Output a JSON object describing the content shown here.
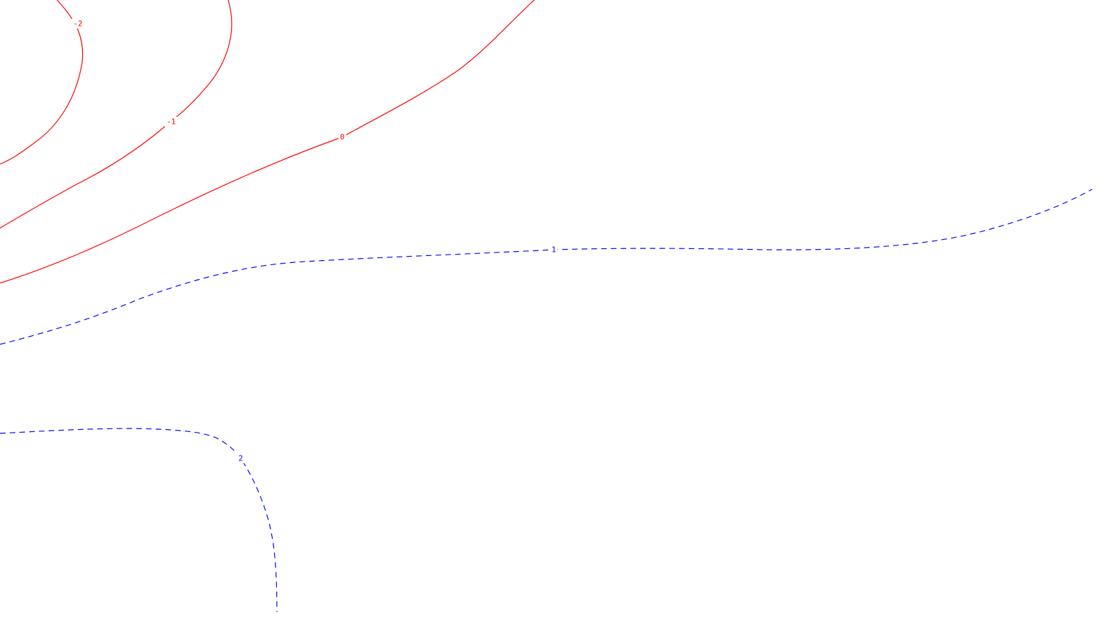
{
  "chart_data": {
    "type": "contour",
    "title": "",
    "xlabel": "",
    "ylabel": "",
    "grid": false,
    "levels": [
      {
        "value": -2,
        "label": "-2",
        "color": "#ff0000",
        "line_style": "solid"
      },
      {
        "value": -1,
        "label": "-1",
        "color": "#ff0000",
        "line_style": "solid"
      },
      {
        "value": 0,
        "label": "0",
        "color": "#ff0000",
        "line_style": "solid"
      },
      {
        "value": 1,
        "label": "1",
        "color": "#0000ff",
        "line_style": "dashed"
      },
      {
        "value": 2,
        "label": "2",
        "color": "#0000ff",
        "line_style": "dashed"
      }
    ]
  }
}
